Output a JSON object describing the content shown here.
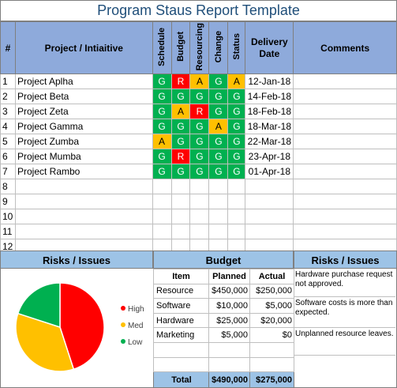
{
  "title": "Program Staus Report Template",
  "headers": {
    "num": "#",
    "project": "Project / Intiaitive",
    "schedule": "Schedule",
    "budget": "Budget",
    "resourcing": "Resourcing",
    "change": "Change",
    "status": "Status",
    "delivery": "Delivery Date",
    "comments": "Comments"
  },
  "colors": {
    "G": "#00b050",
    "R": "#ff0000",
    "A": "#ffc000",
    "header": "#8eaadb",
    "comments_header": "#ffd966",
    "section": "#9dc3e6"
  },
  "projects": [
    {
      "num": "1",
      "name": "Project Aplha",
      "schedule": "G",
      "budget": "R",
      "resourcing": "A",
      "change": "G",
      "status": "A",
      "date": "12-Jan-18",
      "comment": ""
    },
    {
      "num": "2",
      "name": "Project Beta",
      "schedule": "G",
      "budget": "G",
      "resourcing": "G",
      "change": "G",
      "status": "G",
      "date": "14-Feb-18",
      "comment": ""
    },
    {
      "num": "3",
      "name": "Project Zeta",
      "schedule": "G",
      "budget": "A",
      "resourcing": "R",
      "change": "G",
      "status": "G",
      "date": "18-Feb-18",
      "comment": ""
    },
    {
      "num": "4",
      "name": "Project Gamma",
      "schedule": "G",
      "budget": "G",
      "resourcing": "G",
      "change": "A",
      "status": "G",
      "date": "18-Mar-18",
      "comment": ""
    },
    {
      "num": "5",
      "name": "Project Zumba",
      "schedule": "A",
      "budget": "G",
      "resourcing": "G",
      "change": "G",
      "status": "G",
      "date": "22-Mar-18",
      "comment": ""
    },
    {
      "num": "6",
      "name": "Project Mumba",
      "schedule": "G",
      "budget": "R",
      "resourcing": "G",
      "change": "G",
      "status": "G",
      "date": "23-Apr-18",
      "comment": ""
    },
    {
      "num": "7",
      "name": "Project Rambo",
      "schedule": "G",
      "budget": "G",
      "resourcing": "G",
      "change": "G",
      "status": "G",
      "date": "01-Apr-18",
      "comment": ""
    },
    {
      "num": "8",
      "name": "",
      "schedule": "",
      "budget": "",
      "resourcing": "",
      "change": "",
      "status": "",
      "date": "",
      "comment": ""
    },
    {
      "num": "9",
      "name": "",
      "schedule": "",
      "budget": "",
      "resourcing": "",
      "change": "",
      "status": "",
      "date": "",
      "comment": ""
    },
    {
      "num": "10",
      "name": "",
      "schedule": "",
      "budget": "",
      "resourcing": "",
      "change": "",
      "status": "",
      "date": "",
      "comment": ""
    },
    {
      "num": "11",
      "name": "",
      "schedule": "",
      "budget": "",
      "resourcing": "",
      "change": "",
      "status": "",
      "date": "",
      "comment": ""
    },
    {
      "num": "12",
      "name": "",
      "schedule": "",
      "budget": "",
      "resourcing": "",
      "change": "",
      "status": "",
      "date": "",
      "comment": ""
    }
  ],
  "risks_title": "Risks / Issues",
  "budget_title": "Budget",
  "issues_title": "Risks / Issues",
  "budget_headers": {
    "item": "Item",
    "planned": "Planned",
    "actual": "Actual"
  },
  "budget_rows": [
    {
      "item": "Resource",
      "planned": "$450,000",
      "actual": "$250,000"
    },
    {
      "item": "Software",
      "planned": "$10,000",
      "actual": "$5,000"
    },
    {
      "item": "Hardware",
      "planned": "$25,000",
      "actual": "$20,000"
    },
    {
      "item": "Marketing",
      "planned": "$5,000",
      "actual": "$0"
    },
    {
      "item": "",
      "planned": "",
      "actual": ""
    },
    {
      "item": "",
      "planned": "",
      "actual": ""
    }
  ],
  "budget_total": {
    "label": "Total",
    "planned": "$490,000",
    "actual": "$275,000"
  },
  "issues": [
    "Hardware purchase request not approved.",
    "Software costs is more than expected.",
    "Unplanned resource leaves."
  ],
  "chart_data": {
    "type": "pie",
    "categories": [
      "High",
      "Med",
      "Low"
    ],
    "values": [
      45,
      35,
      20
    ],
    "colors": [
      "#ff0000",
      "#ffc000",
      "#00b050"
    ],
    "legend": "right"
  }
}
